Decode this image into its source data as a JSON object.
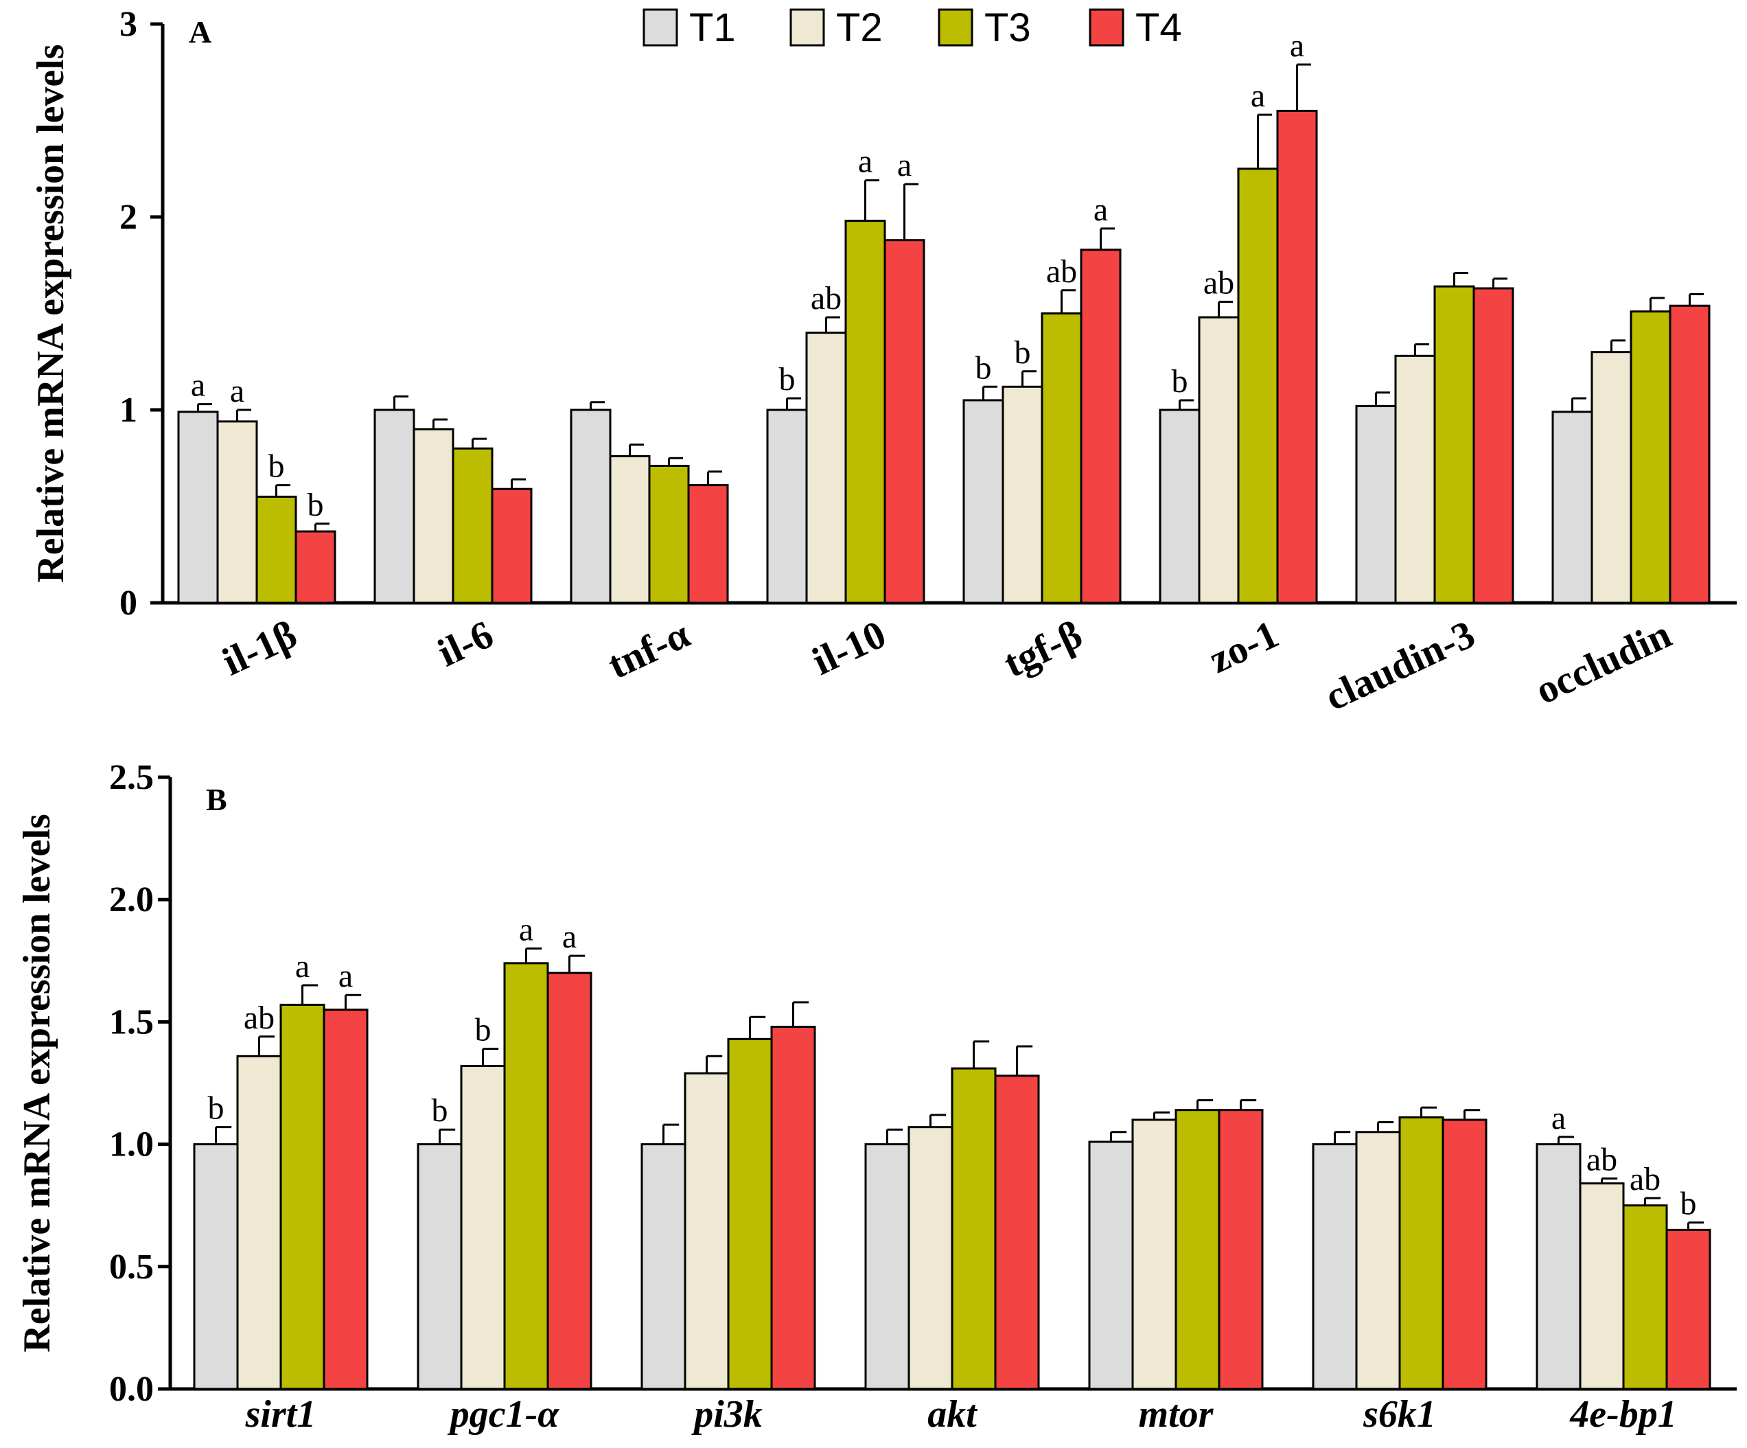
{
  "legend": {
    "items": [
      {
        "label": "T1",
        "color": "#dcdcdc"
      },
      {
        "label": "T2",
        "color": "#efe8d2"
      },
      {
        "label": "T3",
        "color": "#bcbd00"
      },
      {
        "label": "T4",
        "color": "#f44343"
      }
    ]
  },
  "chart_data": [
    {
      "type": "bar",
      "panel_label": "A",
      "ylabel": "Relative mRNA expression levels",
      "ylim": [
        0,
        3
      ],
      "yticks": [
        0,
        1,
        2,
        3
      ],
      "ytick_labels": [
        "0",
        "1",
        "2",
        "3"
      ],
      "categories": [
        "il-1β",
        "il-6",
        "tnf-α",
        "il-10",
        "tgf-β",
        "zo-1",
        "claudin-3",
        "occludin"
      ],
      "category_style": "rotated",
      "series": [
        {
          "name": "T1",
          "values": [
            0.99,
            1.0,
            1.0,
            1.0,
            1.05,
            1.0,
            1.02,
            0.99
          ],
          "errors": [
            0.04,
            0.07,
            0.04,
            0.06,
            0.07,
            0.05,
            0.07,
            0.07
          ],
          "letters": [
            "a",
            "",
            "",
            "b",
            "b",
            "b",
            "",
            ""
          ]
        },
        {
          "name": "T2",
          "values": [
            0.94,
            0.9,
            0.76,
            1.4,
            1.12,
            1.48,
            1.28,
            1.3
          ],
          "errors": [
            0.06,
            0.05,
            0.06,
            0.08,
            0.08,
            0.08,
            0.06,
            0.06
          ],
          "letters": [
            "a",
            "",
            "",
            "ab",
            "b",
            "ab",
            "",
            ""
          ]
        },
        {
          "name": "T3",
          "values": [
            0.55,
            0.8,
            0.71,
            1.98,
            1.5,
            2.25,
            1.64,
            1.51
          ],
          "errors": [
            0.06,
            0.05,
            0.04,
            0.21,
            0.12,
            0.28,
            0.07,
            0.07
          ],
          "letters": [
            "b",
            "",
            "",
            "a",
            "ab",
            "a",
            "",
            ""
          ]
        },
        {
          "name": "T4",
          "values": [
            0.37,
            0.59,
            0.61,
            1.88,
            1.83,
            2.55,
            1.63,
            1.54
          ],
          "errors": [
            0.04,
            0.05,
            0.07,
            0.29,
            0.11,
            0.24,
            0.05,
            0.06
          ],
          "letters": [
            "b",
            "",
            "",
            "a",
            "a",
            "a",
            "",
            ""
          ]
        }
      ]
    },
    {
      "type": "bar",
      "panel_label": "B",
      "ylabel": "Relative mRNA expression levels",
      "ylim": [
        0,
        2.5
      ],
      "yticks": [
        0,
        0.5,
        1.0,
        1.5,
        2.0,
        2.5
      ],
      "ytick_labels": [
        "0.0",
        "0.5",
        "1.0",
        "1.5",
        "2.0",
        "2.5"
      ],
      "categories": [
        "sirt1",
        "pgc1-α",
        "pi3k",
        "akt",
        "mtor",
        "s6k1",
        "4e-bp1"
      ],
      "category_style": "italic",
      "series": [
        {
          "name": "T1",
          "values": [
            1.0,
            1.0,
            1.0,
            1.0,
            1.01,
            1.0,
            1.0
          ],
          "errors": [
            0.07,
            0.06,
            0.08,
            0.06,
            0.04,
            0.05,
            0.03
          ],
          "letters": [
            "b",
            "b",
            "",
            "",
            "",
            "",
            "a"
          ]
        },
        {
          "name": "T2",
          "values": [
            1.36,
            1.32,
            1.29,
            1.07,
            1.1,
            1.05,
            0.84
          ],
          "errors": [
            0.08,
            0.07,
            0.07,
            0.05,
            0.03,
            0.04,
            0.02
          ],
          "letters": [
            "ab",
            "b",
            "",
            "",
            "",
            "",
            "ab"
          ]
        },
        {
          "name": "T3",
          "values": [
            1.57,
            1.74,
            1.43,
            1.31,
            1.14,
            1.11,
            0.75
          ],
          "errors": [
            0.08,
            0.06,
            0.09,
            0.11,
            0.04,
            0.04,
            0.03
          ],
          "letters": [
            "a",
            "a",
            "",
            "",
            "",
            "",
            "ab"
          ]
        },
        {
          "name": "T4",
          "values": [
            1.55,
            1.7,
            1.48,
            1.28,
            1.14,
            1.1,
            0.65
          ],
          "errors": [
            0.06,
            0.07,
            0.1,
            0.12,
            0.04,
            0.04,
            0.03
          ],
          "letters": [
            "a",
            "a",
            "",
            "",
            "",
            "",
            "b"
          ]
        }
      ]
    }
  ]
}
